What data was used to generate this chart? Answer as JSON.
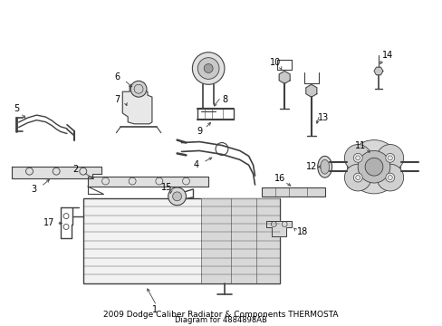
{
  "title": "2009 Dodge Caliber Radiator & Components THERMOSTA",
  "subtitle": "Diagram for 4884898AB",
  "bg_color": "#ffffff",
  "lc": "#404040",
  "fig_width": 4.89,
  "fig_height": 3.6,
  "dpi": 100,
  "label_fs": 7,
  "title_fs": 6.5,
  "sub_fs": 6.0
}
